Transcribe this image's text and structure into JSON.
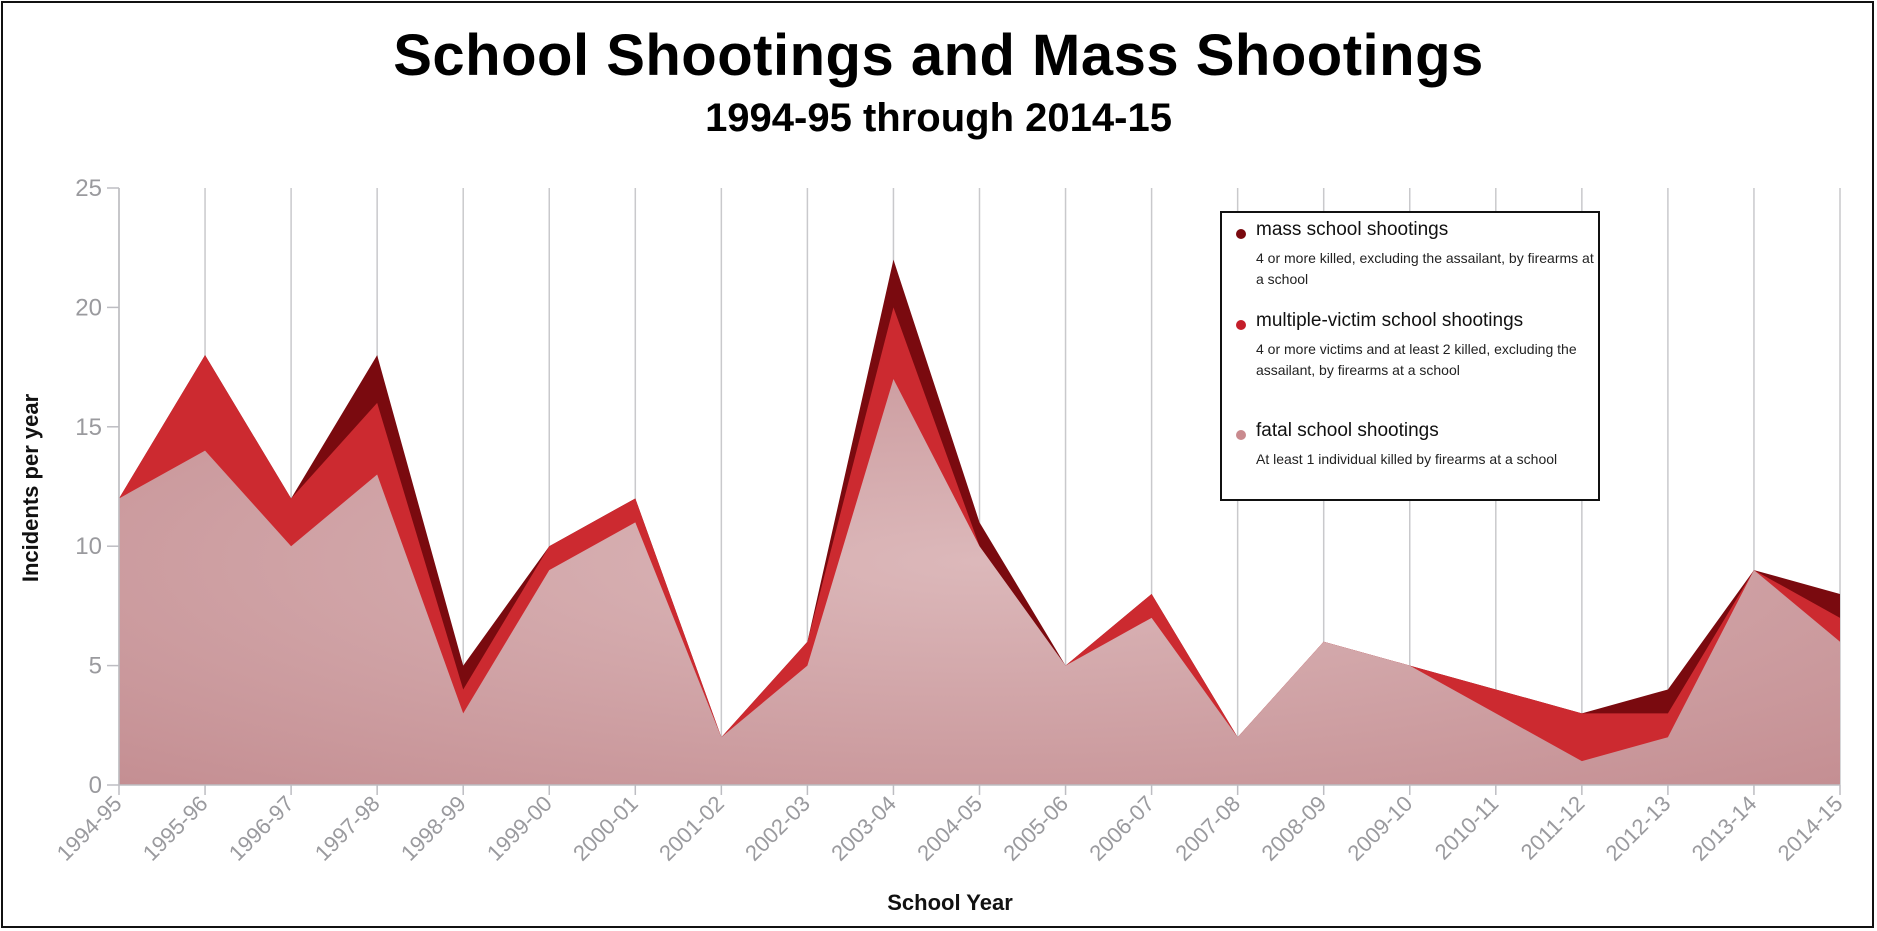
{
  "chart_data": {
    "type": "area",
    "title": "School Shootings and Mass Shootings",
    "subtitle": "1994-95 through 2014-15",
    "xlabel": "School Year",
    "ylabel": "Incidents per year",
    "ylim": [
      0,
      25
    ],
    "yticks": [
      0,
      5,
      10,
      15,
      20,
      25
    ],
    "categories": [
      "1994-95",
      "1995-96",
      "1996-97",
      "1997-98",
      "1998-99",
      "1999-00",
      "2000-01",
      "2001-02",
      "2002-03",
      "2003-04",
      "2004-05",
      "2005-06",
      "2006-07",
      "2007-08",
      "2008-09",
      "2009-10",
      "2010-11",
      "2011-12",
      "2012-13",
      "2013-14",
      "2014-15"
    ],
    "series": [
      {
        "name": "fatal school shootings",
        "values": [
          12,
          14,
          10,
          13,
          3,
          9,
          11,
          2,
          5,
          17,
          10,
          5,
          7,
          2,
          6,
          5,
          3,
          1,
          2,
          9,
          6
        ],
        "color": "#cfa0a2"
      },
      {
        "name": "multiple-victim school shootings",
        "values": [
          12,
          18,
          12,
          16,
          4,
          10,
          12,
          2,
          6,
          20,
          10,
          5,
          8,
          2,
          6,
          5,
          4,
          3,
          3,
          9,
          7
        ],
        "color": "#cc2a30"
      },
      {
        "name": "mass school shootings",
        "values": [
          12,
          18,
          12,
          18,
          5,
          10,
          12,
          2,
          6,
          22,
          11,
          5,
          8,
          2,
          6,
          5,
          4,
          3,
          4,
          9,
          8
        ],
        "color": "#7a0a0f"
      }
    ],
    "grid": true,
    "legend": {
      "position": "top-right",
      "items": [
        {
          "label": "mass school shootings",
          "desc": "4 or more killed, excluding the assailant, by firearms at a school",
          "color": "#7a0a0f"
        },
        {
          "label": "multiple-victim school shootings",
          "desc": "4 or more victims and at least 2 killed, excluding the assailant, by firearms at a school",
          "color": "#c41e2a"
        },
        {
          "label": "fatal school shootings",
          "desc": "At least 1 individual killed by firearms at a school",
          "color": "#c98a8e"
        }
      ]
    }
  }
}
